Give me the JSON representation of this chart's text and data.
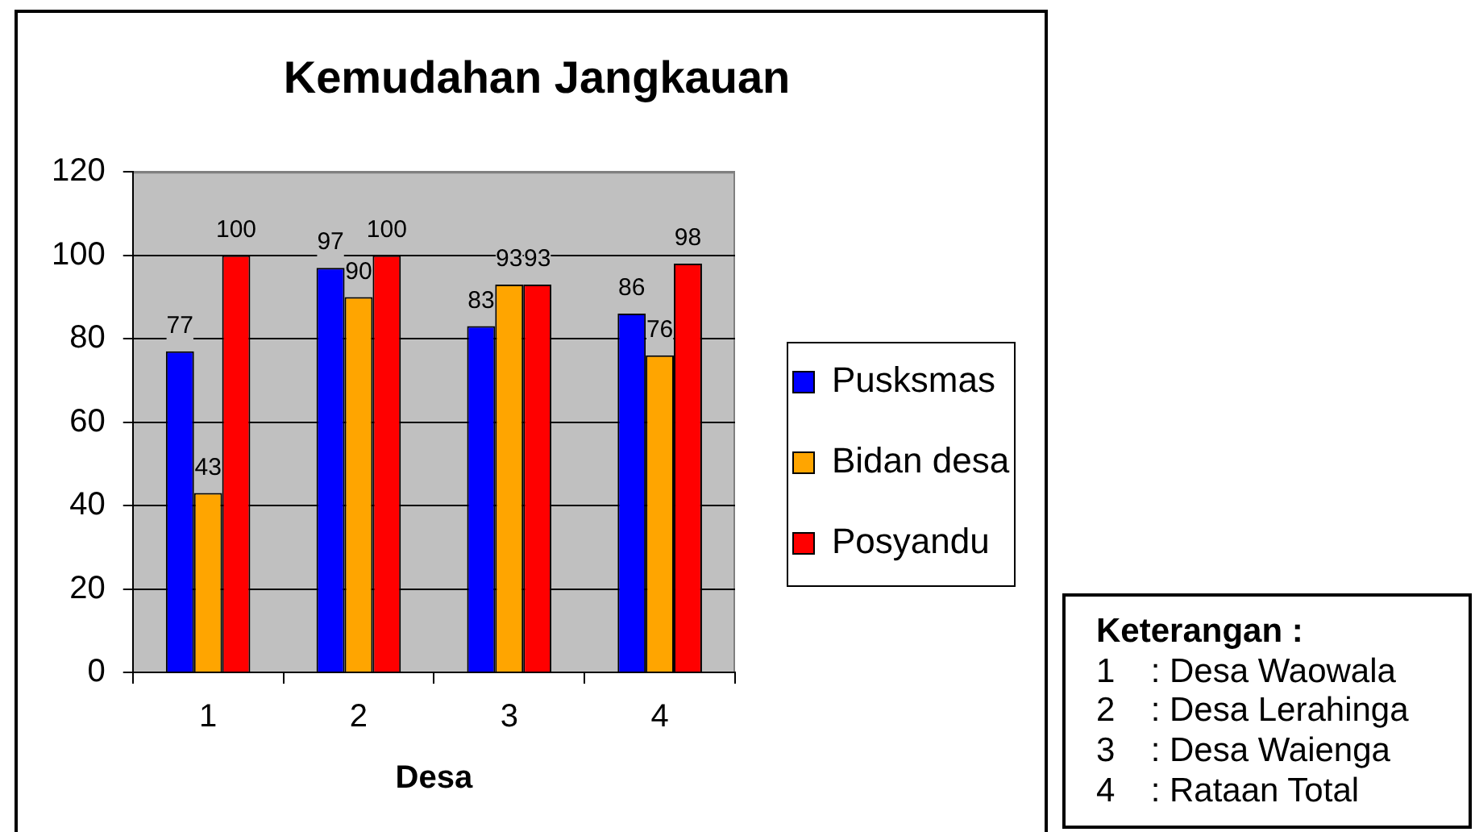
{
  "chart_data": {
    "type": "bar",
    "title": "Kemudahan Jangkauan",
    "xlabel": "Desa",
    "categories": [
      "1",
      "2",
      "3",
      "4"
    ],
    "series": [
      {
        "name": "Pusksmas",
        "color": "#0000ff",
        "values": [
          77,
          97,
          83,
          86
        ]
      },
      {
        "name": "Bidan desa",
        "color": "#ffa500",
        "values": [
          43,
          90,
          93,
          76
        ]
      },
      {
        "name": "Posyandu",
        "color": "#ff0000",
        "values": [
          100,
          100,
          93,
          98
        ]
      }
    ],
    "ylim": [
      0,
      120
    ],
    "yticks": [
      0,
      20,
      40,
      60,
      80,
      100,
      120
    ],
    "grid": "y",
    "legend": "right",
    "data_labels": true,
    "annotations": [
      "Keterangan :",
      "1 : Desa Waowala",
      "2 : Desa Lerahinga",
      "3 : Desa Waienga",
      "4 : Rataan Total"
    ]
  }
}
